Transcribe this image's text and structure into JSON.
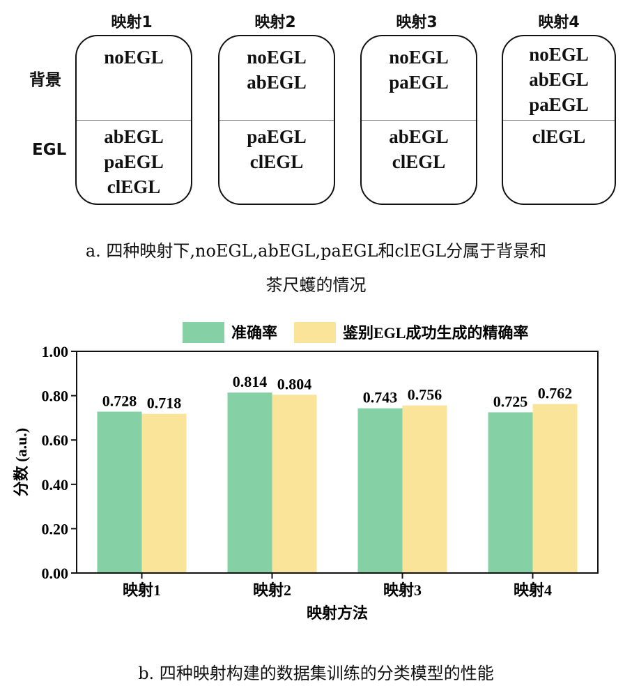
{
  "figure_a": {
    "row_labels": [
      "背景",
      "EGL"
    ],
    "mappings": [
      {
        "title": "映射1",
        "background": [
          "noEGL"
        ],
        "egl": [
          "abEGL",
          "paEGL",
          "clEGL"
        ]
      },
      {
        "title": "映射2",
        "background": [
          "noEGL",
          "abEGL"
        ],
        "egl": [
          "paEGL",
          "clEGL"
        ]
      },
      {
        "title": "映射3",
        "background": [
          "noEGL",
          "paEGL"
        ],
        "egl": [
          "abEGL",
          "clEGL"
        ]
      },
      {
        "title": "映射4",
        "background": [
          "noEGL",
          "abEGL",
          "paEGL"
        ],
        "egl": [
          "clEGL"
        ]
      }
    ],
    "caption_line1": "a. 四种映射下,noEGL,abEGL,paEGL和clEGL分属于背景和",
    "caption_line2": "茶尺蠖的情况"
  },
  "chart_data": {
    "type": "bar",
    "categories": [
      "映射1",
      "映射2",
      "映射3",
      "映射4"
    ],
    "series": [
      {
        "name": "准确率",
        "values": [
          0.728,
          0.814,
          0.743,
          0.725
        ],
        "color": "#86d0a6"
      },
      {
        "name": "鉴别EGL成功生成的精确率",
        "values": [
          0.718,
          0.804,
          0.756,
          0.762
        ],
        "color": "#f9e49a"
      }
    ],
    "value_labels": [
      [
        "0.728",
        "0.814",
        "0.743",
        "0.725"
      ],
      [
        "0.718",
        "0.804",
        "0.756",
        "0.762"
      ]
    ],
    "title": "",
    "xlabel": "映射方法",
    "ylabel": "分数 (a.u.)",
    "ylim": [
      0,
      1.0
    ],
    "yticks": [
      "0.00",
      "0.20",
      "0.40",
      "0.60",
      "0.80",
      "1.00"
    ],
    "legend_position": "top",
    "grid": false
  },
  "caption_b": "b. 四种映射构建的数据集训练的分类模型的性能"
}
